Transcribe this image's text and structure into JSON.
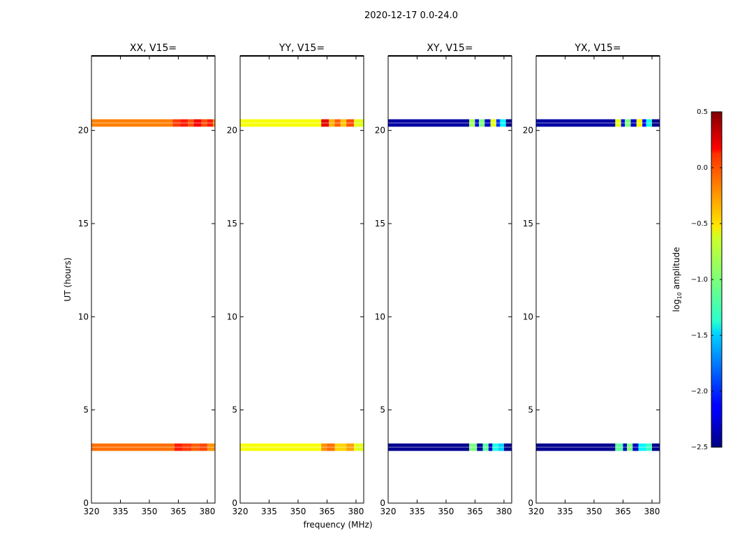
{
  "figure_title": "2020-12-17 0.0-24.0",
  "shared_xlabel": "frequency (MHz)",
  "shared_ylabel": "UT (hours)",
  "colorbar": {
    "label_prefix": "log",
    "label_sub": "10",
    "label_suffix": " amplitude",
    "range": [
      -2.5,
      0.5
    ],
    "ticks": [
      0.5,
      0.0,
      -0.5,
      -1.0,
      -1.5,
      -2.0,
      -2.5
    ],
    "tick_labels": [
      "0.5",
      "0.0",
      "−0.5",
      "−1.0",
      "−1.5",
      "−2.0",
      "−2.5"
    ],
    "colormap": "jet"
  },
  "chart_data": [
    {
      "type": "heatmap",
      "title": "XX, V15=",
      "xlabel": "",
      "ylabel": "UT (hours)",
      "xlim": [
        320,
        384
      ],
      "ylim": [
        0,
        24
      ],
      "xticks": [
        320,
        335,
        350,
        365,
        380
      ],
      "yticks": [
        0,
        5,
        10,
        15,
        20
      ],
      "bands": [
        {
          "y_range": [
            2.8,
            3.2
          ],
          "segments": [
            {
              "x": [
                320,
                363
              ],
              "value": -0.2
            },
            {
              "x": [
                363,
                367
              ],
              "value": 0.05
            },
            {
              "x": [
                367,
                372
              ],
              "value": -0.05
            },
            {
              "x": [
                372,
                376
              ],
              "value": -0.15
            },
            {
              "x": [
                376,
                380
              ],
              "value": -0.08
            },
            {
              "x": [
                380,
                384
              ],
              "value": -0.3
            }
          ]
        },
        {
          "y_range": [
            20.2,
            20.6
          ],
          "segments": [
            {
              "x": [
                320,
                362
              ],
              "value": -0.25
            },
            {
              "x": [
                362,
                366
              ],
              "value": -0.05
            },
            {
              "x": [
                366,
                370
              ],
              "value": 0.05
            },
            {
              "x": [
                370,
                373
              ],
              "value": -0.12
            },
            {
              "x": [
                373,
                377
              ],
              "value": 0.15
            },
            {
              "x": [
                377,
                380
              ],
              "value": -0.1
            },
            {
              "x": [
                380,
                383
              ],
              "value": 0.05
            },
            {
              "x": [
                383,
                384
              ],
              "value": -0.3
            }
          ]
        }
      ]
    },
    {
      "type": "heatmap",
      "title": "YY, V15=",
      "xlabel": "",
      "ylabel": "",
      "xlim": [
        320,
        384
      ],
      "ylim": [
        0,
        24
      ],
      "xticks": [
        320,
        335,
        350,
        365,
        380
      ],
      "yticks": [
        0,
        5,
        10,
        15,
        20
      ],
      "bands": [
        {
          "y_range": [
            2.8,
            3.2
          ],
          "segments": [
            {
              "x": [
                320,
                362
              ],
              "value": -0.65
            },
            {
              "x": [
                362,
                365
              ],
              "value": -0.3
            },
            {
              "x": [
                365,
                369
              ],
              "value": -0.2
            },
            {
              "x": [
                369,
                375
              ],
              "value": -0.5
            },
            {
              "x": [
                375,
                379
              ],
              "value": -0.35
            },
            {
              "x": [
                379,
                384
              ],
              "value": -0.7
            }
          ]
        },
        {
          "y_range": [
            20.2,
            20.6
          ],
          "segments": [
            {
              "x": [
                320,
                362
              ],
              "value": -0.65
            },
            {
              "x": [
                362,
                366
              ],
              "value": 0.2
            },
            {
              "x": [
                366,
                369
              ],
              "value": -0.4
            },
            {
              "x": [
                369,
                372
              ],
              "value": -0.15
            },
            {
              "x": [
                372,
                375
              ],
              "value": -0.45
            },
            {
              "x": [
                375,
                379
              ],
              "value": -0.1
            },
            {
              "x": [
                379,
                384
              ],
              "value": -0.7
            }
          ]
        }
      ]
    },
    {
      "type": "heatmap",
      "title": "XY, V15=",
      "xlabel": "",
      "ylabel": "",
      "xlim": [
        320,
        384
      ],
      "ylim": [
        0,
        24
      ],
      "xticks": [
        320,
        335,
        350,
        365,
        380
      ],
      "yticks": [
        0,
        5,
        10,
        15,
        20
      ],
      "bands": [
        {
          "y_range": [
            2.8,
            3.2
          ],
          "segments": [
            {
              "x": [
                320,
                362
              ],
              "value": -2.45
            },
            {
              "x": [
                362,
                366
              ],
              "value": -1.0
            },
            {
              "x": [
                366,
                369
              ],
              "value": -2.4
            },
            {
              "x": [
                369,
                372
              ],
              "value": -1.1
            },
            {
              "x": [
                372,
                374
              ],
              "value": -2.3
            },
            {
              "x": [
                374,
                377
              ],
              "value": -1.3
            },
            {
              "x": [
                377,
                380
              ],
              "value": -1.5
            },
            {
              "x": [
                380,
                384
              ],
              "value": -2.45
            }
          ]
        },
        {
          "y_range": [
            20.2,
            20.6
          ],
          "segments": [
            {
              "x": [
                320,
                362
              ],
              "value": -2.4
            },
            {
              "x": [
                362,
                365
              ],
              "value": -0.9
            },
            {
              "x": [
                365,
                367
              ],
              "value": -2.2
            },
            {
              "x": [
                367,
                370
              ],
              "value": -1.0
            },
            {
              "x": [
                370,
                373
              ],
              "value": -2.3
            },
            {
              "x": [
                373,
                376
              ],
              "value": -0.7
            },
            {
              "x": [
                376,
                378
              ],
              "value": -2.0
            },
            {
              "x": [
                378,
                381
              ],
              "value": -1.4
            },
            {
              "x": [
                381,
                384
              ],
              "value": -2.45
            }
          ]
        }
      ]
    },
    {
      "type": "heatmap",
      "title": "YX, V15=",
      "xlabel": "",
      "ylabel": "",
      "xlim": [
        320,
        384
      ],
      "ylim": [
        0,
        24
      ],
      "xticks": [
        320,
        335,
        350,
        365,
        380
      ],
      "yticks": [
        0,
        5,
        10,
        15,
        20
      ],
      "bands": [
        {
          "y_range": [
            2.8,
            3.2
          ],
          "segments": [
            {
              "x": [
                320,
                361
              ],
              "value": -2.45
            },
            {
              "x": [
                361,
                365
              ],
              "value": -1.1
            },
            {
              "x": [
                365,
                367
              ],
              "value": -2.3
            },
            {
              "x": [
                367,
                370
              ],
              "value": -1.0
            },
            {
              "x": [
                370,
                373
              ],
              "value": -2.3
            },
            {
              "x": [
                373,
                377
              ],
              "value": -1.4
            },
            {
              "x": [
                377,
                380
              ],
              "value": -1.2
            },
            {
              "x": [
                380,
                384
              ],
              "value": -2.45
            }
          ]
        },
        {
          "y_range": [
            20.2,
            20.6
          ],
          "segments": [
            {
              "x": [
                320,
                361
              ],
              "value": -2.4
            },
            {
              "x": [
                361,
                364
              ],
              "value": -0.7
            },
            {
              "x": [
                364,
                366
              ],
              "value": -2.2
            },
            {
              "x": [
                366,
                369
              ],
              "value": -1.0
            },
            {
              "x": [
                369,
                372
              ],
              "value": -2.3
            },
            {
              "x": [
                372,
                375
              ],
              "value": -0.6
            },
            {
              "x": [
                375,
                377
              ],
              "value": -2.1
            },
            {
              "x": [
                377,
                380
              ],
              "value": -1.3
            },
            {
              "x": [
                380,
                384
              ],
              "value": -2.45
            }
          ]
        }
      ]
    }
  ]
}
